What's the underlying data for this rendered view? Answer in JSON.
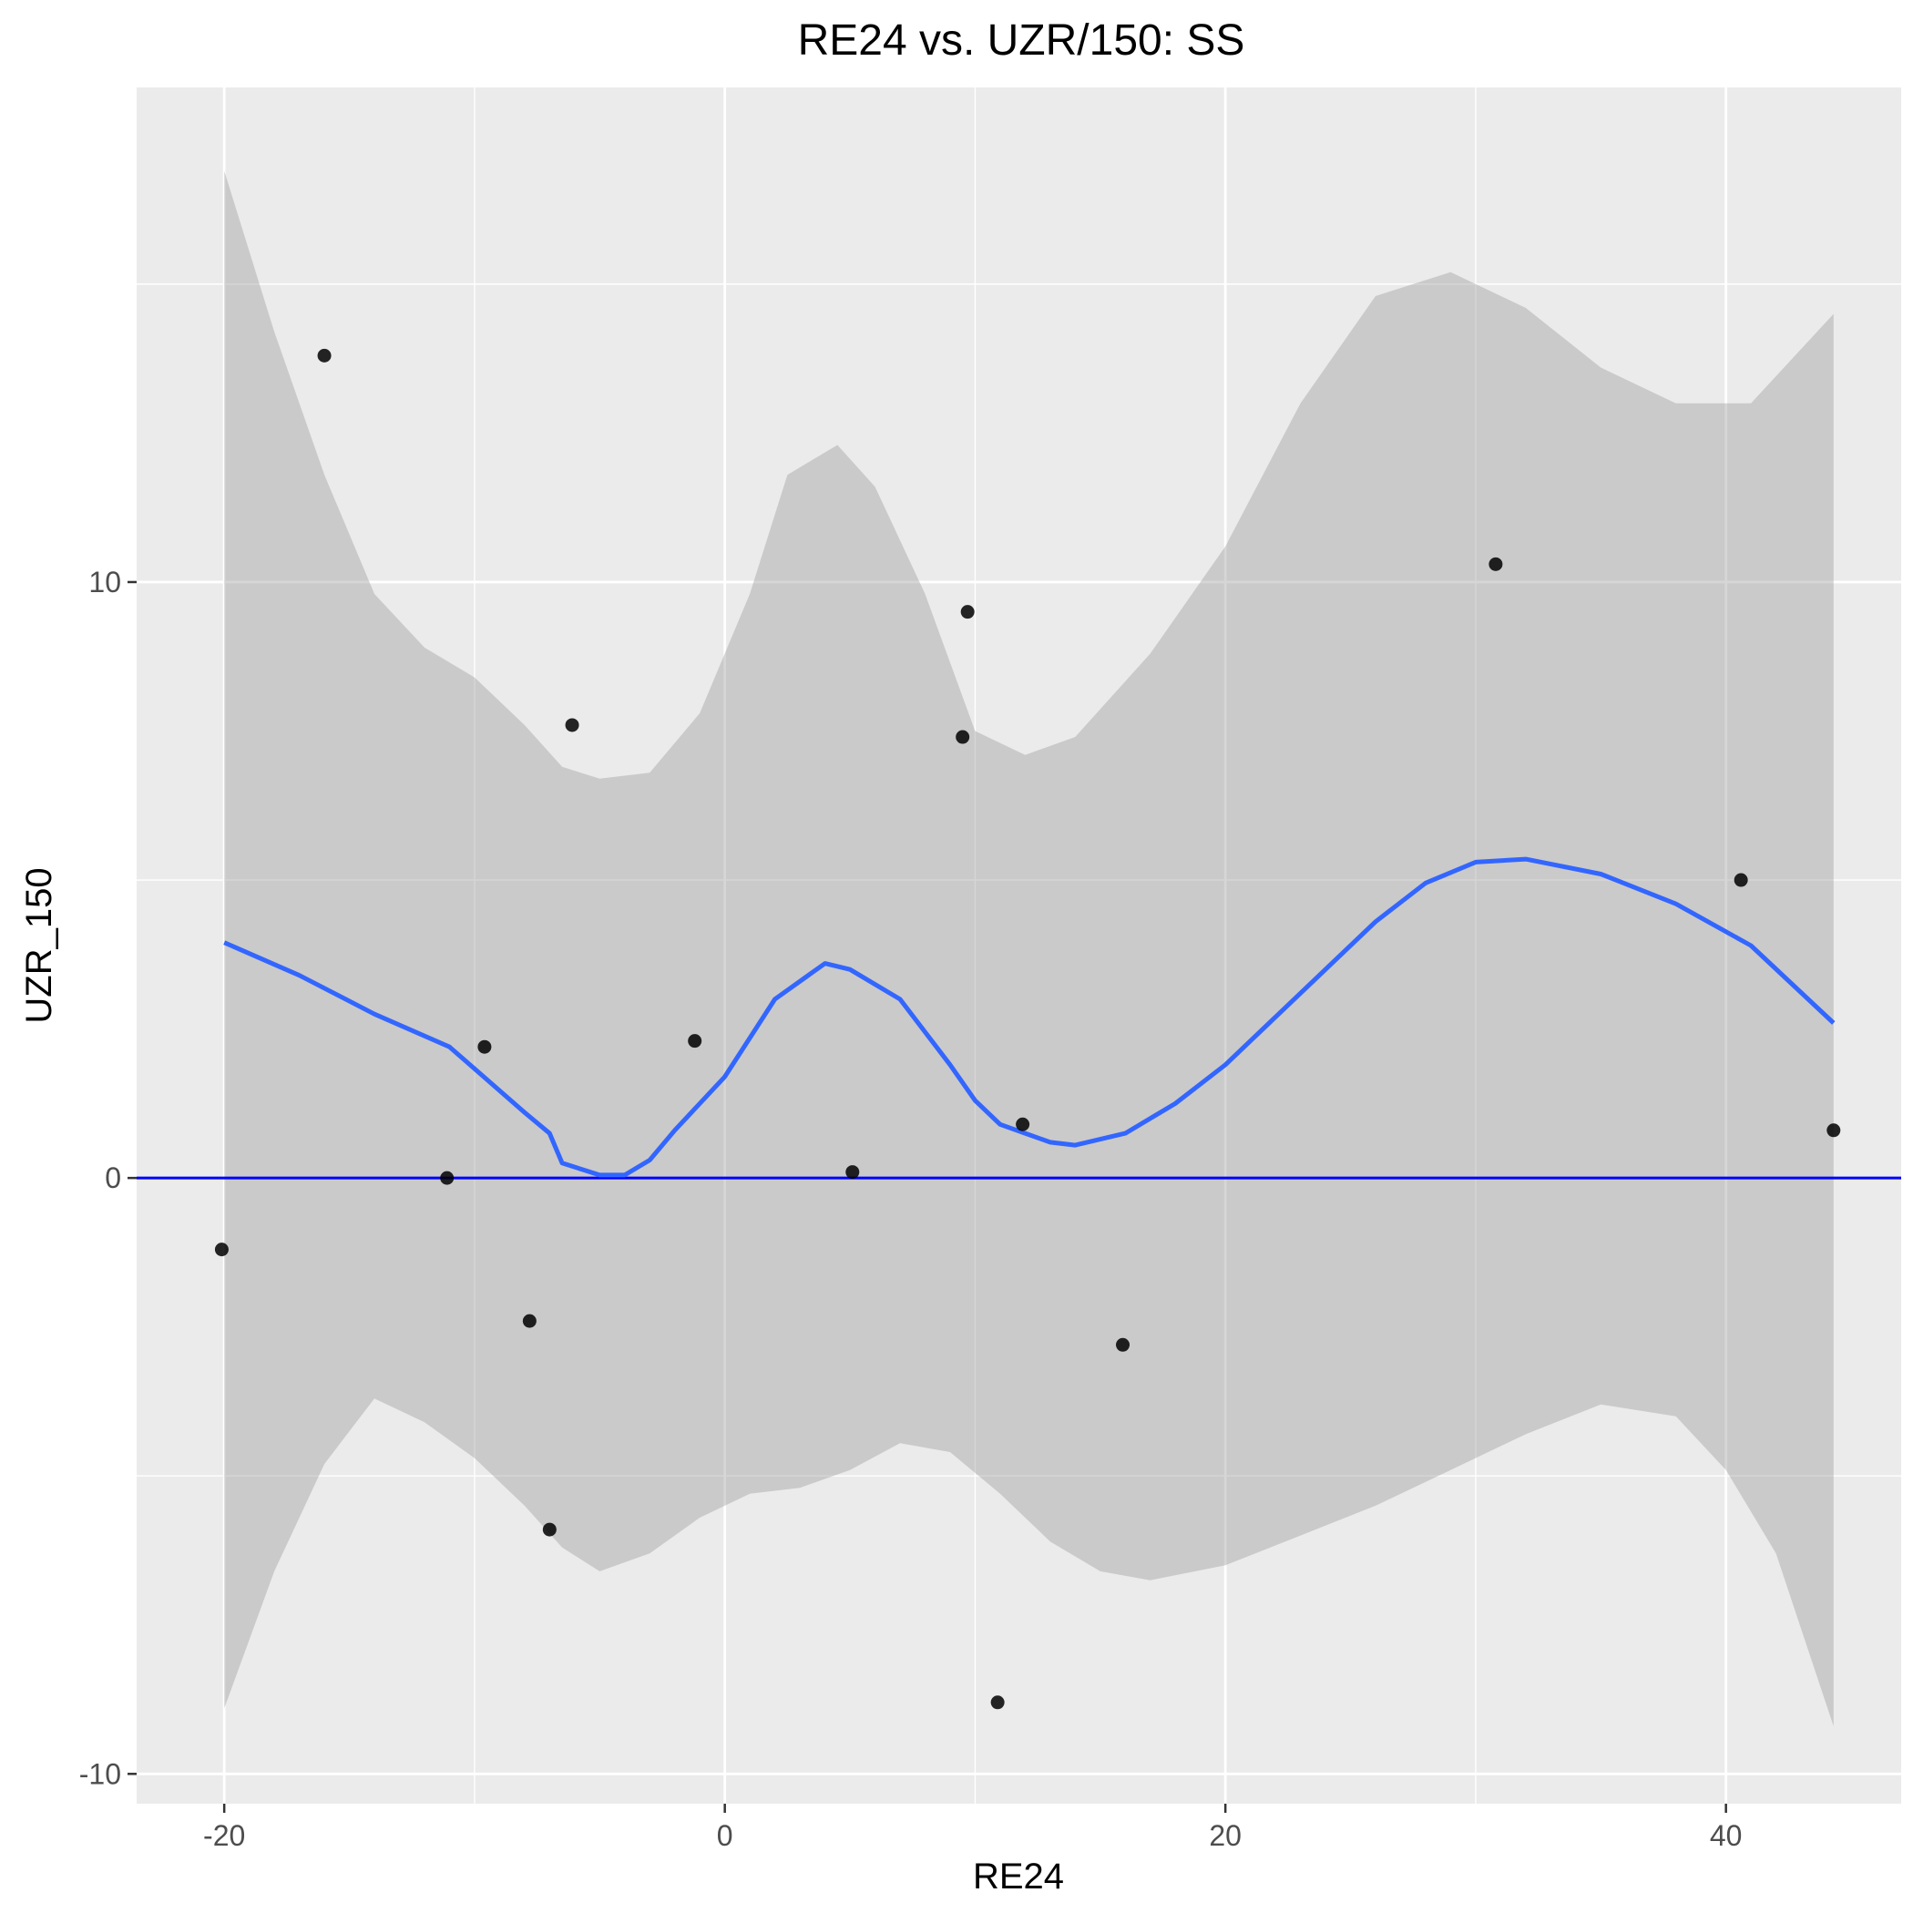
{
  "chart_data": {
    "type": "scatter",
    "title": "RE24 vs. UZR/150: SS",
    "xlabel": "RE24",
    "ylabel": "UZR_150",
    "xlim": [
      -23.5,
      47
    ],
    "ylim": [
      -10.5,
      18.3
    ],
    "x_ticks": [
      -20,
      0,
      20,
      40
    ],
    "y_ticks": [
      -10,
      0,
      10
    ],
    "x_tick_labels": [
      "-20",
      "0",
      "20",
      "40"
    ],
    "y_tick_labels": [
      "-10",
      "0",
      "10"
    ],
    "grid": true,
    "points": [
      {
        "x": -20.1,
        "y": -1.2
      },
      {
        "x": -16.0,
        "y": 13.8
      },
      {
        "x": -11.1,
        "y": 0.0
      },
      {
        "x": -9.6,
        "y": 2.2
      },
      {
        "x": -7.8,
        "y": -2.4
      },
      {
        "x": -7.0,
        "y": -5.9
      },
      {
        "x": -6.1,
        "y": 7.6
      },
      {
        "x": -1.2,
        "y": 2.3
      },
      {
        "x": 5.1,
        "y": 0.1
      },
      {
        "x": 9.5,
        "y": 7.4
      },
      {
        "x": 9.7,
        "y": 9.5
      },
      {
        "x": 10.9,
        "y": -8.8
      },
      {
        "x": 11.9,
        "y": 0.9
      },
      {
        "x": 15.9,
        "y": -2.8
      },
      {
        "x": 30.8,
        "y": 10.3
      },
      {
        "x": 40.6,
        "y": 5.0
      },
      {
        "x": 44.3,
        "y": 0.8
      }
    ],
    "smooth_line": {
      "color": "#3366ff",
      "points": [
        {
          "x": -20,
          "y": 3.95
        },
        {
          "x": -17,
          "y": 3.4
        },
        {
          "x": -14,
          "y": 2.75
        },
        {
          "x": -11,
          "y": 2.2
        },
        {
          "x": -8,
          "y": 1.1
        },
        {
          "x": -7,
          "y": 0.75
        },
        {
          "x": -6.5,
          "y": 0.25
        },
        {
          "x": -5,
          "y": 0.05
        },
        {
          "x": -4,
          "y": 0.05
        },
        {
          "x": -3,
          "y": 0.3
        },
        {
          "x": -2,
          "y": 0.8
        },
        {
          "x": 0,
          "y": 1.7
        },
        {
          "x": 2,
          "y": 3.0
        },
        {
          "x": 4,
          "y": 3.6
        },
        {
          "x": 5,
          "y": 3.5
        },
        {
          "x": 7,
          "y": 3.0
        },
        {
          "x": 9,
          "y": 1.9
        },
        {
          "x": 10,
          "y": 1.3
        },
        {
          "x": 11,
          "y": 0.9
        },
        {
          "x": 12,
          "y": 0.75
        },
        {
          "x": 13,
          "y": 0.6
        },
        {
          "x": 14,
          "y": 0.55
        },
        {
          "x": 16,
          "y": 0.75
        },
        {
          "x": 18,
          "y": 1.25
        },
        {
          "x": 20,
          "y": 1.9
        },
        {
          "x": 23,
          "y": 3.1
        },
        {
          "x": 26,
          "y": 4.3
        },
        {
          "x": 28,
          "y": 4.95
        },
        {
          "x": 30,
          "y": 5.3
        },
        {
          "x": 32,
          "y": 5.35
        },
        {
          "x": 35,
          "y": 5.1
        },
        {
          "x": 38,
          "y": 4.6
        },
        {
          "x": 41,
          "y": 3.9
        },
        {
          "x": 44.3,
          "y": 2.6
        }
      ]
    },
    "confidence_band": {
      "color": "#999999",
      "upper": [
        {
          "x": -20,
          "y": 16.9
        },
        {
          "x": -18,
          "y": 14.2
        },
        {
          "x": -16,
          "y": 11.8
        },
        {
          "x": -14,
          "y": 9.8
        },
        {
          "x": -12,
          "y": 8.9
        },
        {
          "x": -10,
          "y": 8.4
        },
        {
          "x": -8,
          "y": 7.6
        },
        {
          "x": -6.5,
          "y": 6.9
        },
        {
          "x": -5,
          "y": 6.7
        },
        {
          "x": -3,
          "y": 6.8
        },
        {
          "x": -1,
          "y": 7.8
        },
        {
          "x": 1,
          "y": 9.8
        },
        {
          "x": 2.5,
          "y": 11.8
        },
        {
          "x": 4.5,
          "y": 12.3
        },
        {
          "x": 6,
          "y": 11.6
        },
        {
          "x": 8,
          "y": 9.8
        },
        {
          "x": 10,
          "y": 7.5
        },
        {
          "x": 12,
          "y": 7.1
        },
        {
          "x": 14,
          "y": 7.4
        },
        {
          "x": 17,
          "y": 8.8
        },
        {
          "x": 20,
          "y": 10.6
        },
        {
          "x": 23,
          "y": 13.0
        },
        {
          "x": 26,
          "y": 14.8
        },
        {
          "x": 29,
          "y": 15.2
        },
        {
          "x": 32,
          "y": 14.6
        },
        {
          "x": 35,
          "y": 13.6
        },
        {
          "x": 38,
          "y": 13.0
        },
        {
          "x": 41,
          "y": 13.0
        },
        {
          "x": 44.3,
          "y": 14.5
        }
      ],
      "lower": [
        {
          "x": -20,
          "y": -8.9
        },
        {
          "x": -18,
          "y": -6.6
        },
        {
          "x": -16,
          "y": -4.8
        },
        {
          "x": -14,
          "y": -3.7
        },
        {
          "x": -12,
          "y": -4.1
        },
        {
          "x": -10,
          "y": -4.7
        },
        {
          "x": -8,
          "y": -5.5
        },
        {
          "x": -6.5,
          "y": -6.2
        },
        {
          "x": -5,
          "y": -6.6
        },
        {
          "x": -3,
          "y": -6.3
        },
        {
          "x": -1,
          "y": -5.7
        },
        {
          "x": 1,
          "y": -5.3
        },
        {
          "x": 3,
          "y": -5.2
        },
        {
          "x": 5,
          "y": -4.9
        },
        {
          "x": 7,
          "y": -4.45
        },
        {
          "x": 9,
          "y": -4.6
        },
        {
          "x": 11,
          "y": -5.3
        },
        {
          "x": 13,
          "y": -6.1
        },
        {
          "x": 15,
          "y": -6.6
        },
        {
          "x": 17,
          "y": -6.75
        },
        {
          "x": 20,
          "y": -6.5
        },
        {
          "x": 23,
          "y": -6.0
        },
        {
          "x": 26,
          "y": -5.5
        },
        {
          "x": 29,
          "y": -4.9
        },
        {
          "x": 32,
          "y": -4.3
        },
        {
          "x": 35,
          "y": -3.8
        },
        {
          "x": 38,
          "y": -4.0
        },
        {
          "x": 40,
          "y": -4.9
        },
        {
          "x": 42,
          "y": -6.3
        },
        {
          "x": 44.3,
          "y": -9.2
        }
      ]
    },
    "reference_line": {
      "y": 0,
      "color": "#0000ff"
    },
    "point_color": "#000000"
  }
}
